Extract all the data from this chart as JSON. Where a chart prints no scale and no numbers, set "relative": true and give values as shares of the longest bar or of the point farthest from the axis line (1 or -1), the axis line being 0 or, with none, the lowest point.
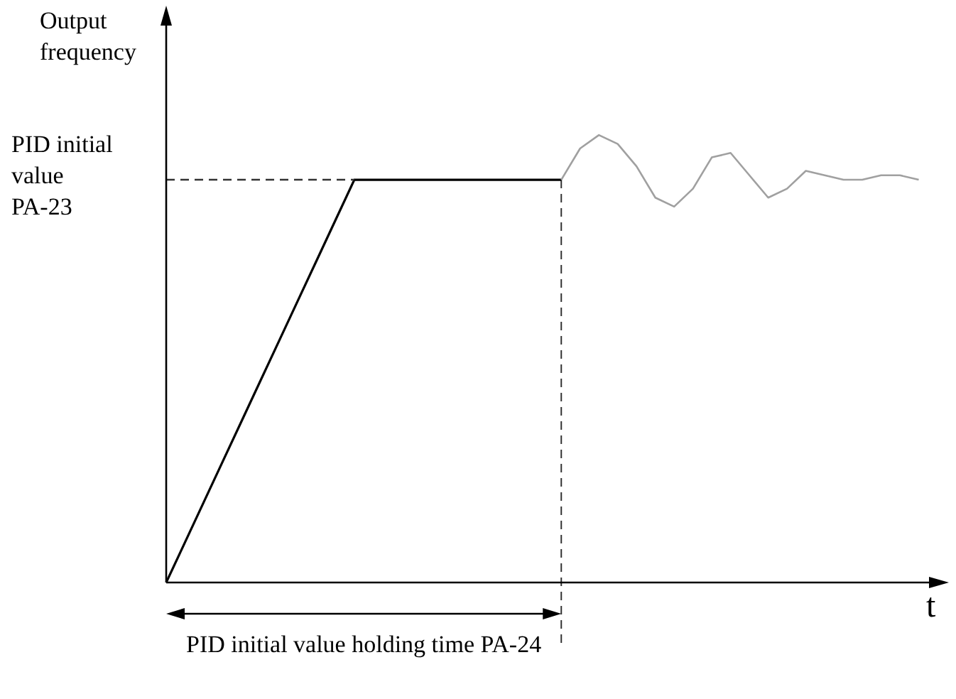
{
  "chart_data": {
    "type": "line",
    "relative": true,
    "ylabel": "Output frequency",
    "xlabel": "t",
    "categories": [
      null,
      null,
      null,
      null,
      null,
      null,
      null,
      null,
      null,
      null,
      null,
      null,
      null,
      null,
      null,
      null,
      null,
      null,
      null,
      null,
      null,
      null,
      null,
      null,
      null,
      null,
      null,
      null,
      null,
      null,
      null,
      null,
      null,
      null,
      null,
      null,
      null,
      null,
      null,
      null,
      null
    ],
    "series": [
      {
        "color": "#000000",
        "line_style": "solid",
        "values": [
          0,
          0.09,
          0.18,
          0.27,
          0.36,
          0.45,
          0.54,
          0.63,
          0.72,
          0.81,
          0.9,
          0.9,
          0.9,
          0.9,
          0.9,
          0.9,
          0.9,
          0.9,
          0.9,
          0.9,
          0.9,
          0.9,
          null,
          null,
          null,
          null,
          null,
          null,
          null,
          null,
          null,
          null,
          null,
          null,
          null,
          null,
          null,
          null,
          null,
          null,
          null
        ]
      },
      {
        "color": "#a0a0a0",
        "line_style": "solid",
        "values": [
          null,
          null,
          null,
          null,
          null,
          null,
          null,
          null,
          null,
          null,
          null,
          null,
          null,
          null,
          null,
          null,
          null,
          null,
          null,
          null,
          null,
          0.9,
          0.97,
          1,
          0.98,
          0.93,
          0.86,
          0.84,
          0.88,
          0.95,
          0.96,
          0.91,
          0.86,
          0.88,
          0.92,
          0.91,
          0.9,
          0.9,
          0.91,
          0.91,
          0.9
        ]
      },
      {
        "color": "#333333",
        "line_style": "dashed",
        "values": [
          0.9,
          0.9,
          0.9,
          0.9,
          0.9,
          0.9,
          0.9,
          0.9,
          0.9,
          0.9,
          0.9,
          null,
          null,
          null,
          null,
          null,
          null,
          null,
          null,
          null,
          null,
          null,
          null,
          null,
          null,
          null,
          null,
          null,
          null,
          null,
          null,
          null,
          null,
          null,
          null,
          null,
          null,
          null,
          null,
          null,
          null
        ]
      }
    ],
    "annotations": [
      "PID initial value PA-23",
      "PID initial value holding time PA-24"
    ],
    "marker": "none",
    "grid": false
  }
}
